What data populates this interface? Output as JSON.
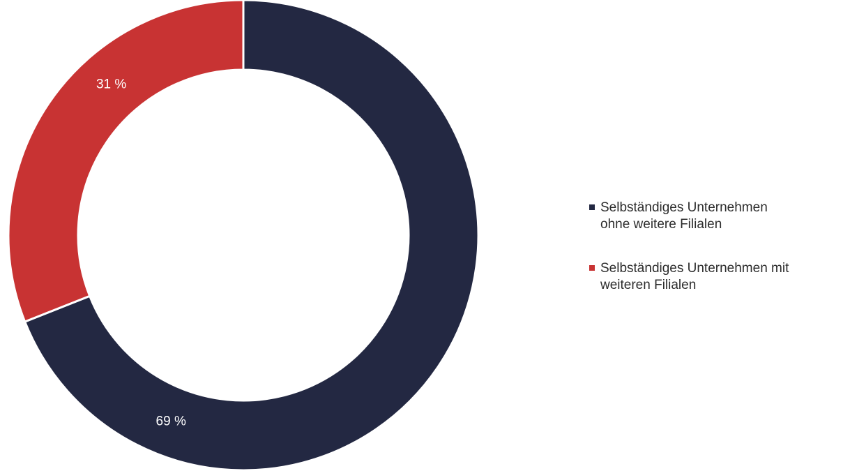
{
  "chart_data": {
    "type": "pie",
    "donut": true,
    "categories": [
      "Selbständiges Unternehmen\nohne weitere Filialen",
      "Selbständiges Unternehmen mit\nweiteren Filialen"
    ],
    "values": [
      69,
      31
    ],
    "value_labels": [
      "69 %",
      "31 %"
    ],
    "colors": [
      "#232842",
      "#c83333"
    ],
    "legend_position": "right",
    "title": ""
  }
}
